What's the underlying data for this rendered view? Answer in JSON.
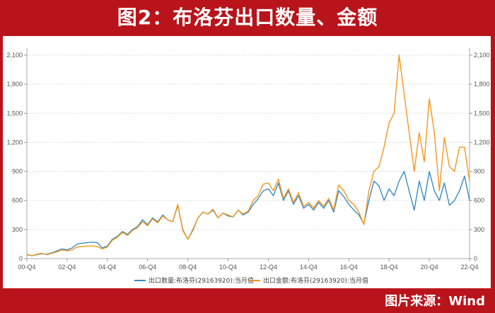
{
  "title": "图2：布洛芬出口数量、金额",
  "source": "图片来源：Wind",
  "colors": {
    "qty": "#3a8dbf",
    "amount": "#f5961e",
    "banner": "#b9141b"
  },
  "chart_data": {
    "type": "line",
    "title": "图2：布洛芬出口数量、金额",
    "x_tick_labels": [
      "00-Q4",
      "02-Q4",
      "04-Q4",
      "06-Q4",
      "08-Q4",
      "10-Q4",
      "12-Q4",
      "14-Q4",
      "16-Q4",
      "18-Q4",
      "20-Q4",
      "22-Q4"
    ],
    "y_tick_labels": [
      "0",
      "300",
      "600",
      "900",
      "1,200",
      "1,500",
      "1,800",
      "2,100"
    ],
    "ylim": [
      0,
      2100
    ],
    "y2lim": [
      0,
      2100
    ],
    "x_start": "2000-Q4",
    "x_end": "2022-Q4",
    "frequency": "quarterly (approx.)",
    "grid": true,
    "legend_position": "bottom",
    "series": [
      {
        "name": "出口数量:布洛芬(29163920):当月值",
        "color": "#3a8dbf",
        "axis": "left",
        "values": [
          40,
          30,
          40,
          50,
          45,
          60,
          80,
          100,
          90,
          110,
          150,
          160,
          165,
          170,
          165,
          110,
          130,
          200,
          230,
          280,
          250,
          300,
          330,
          400,
          350,
          420,
          380,
          450,
          400,
          380,
          550,
          300,
          200,
          300,
          420,
          480,
          460,
          500,
          420,
          470,
          440,
          430,
          500,
          450,
          480,
          560,
          620,
          700,
          720,
          650,
          780,
          600,
          700,
          560,
          650,
          520,
          560,
          500,
          580,
          520,
          600,
          480,
          700,
          640,
          560,
          500,
          450,
          360,
          600,
          800,
          750,
          600,
          720,
          650,
          800,
          900,
          700,
          500,
          800,
          600,
          900,
          700,
          600,
          780,
          550,
          600,
          700,
          850,
          600
        ]
      },
      {
        "name": "出口金额:布洛芬(29163920):当月值",
        "color": "#f5961e",
        "axis": "right",
        "values": [
          45,
          30,
          45,
          55,
          40,
          55,
          70,
          90,
          80,
          90,
          120,
          125,
          130,
          130,
          125,
          100,
          120,
          190,
          220,
          270,
          240,
          290,
          320,
          380,
          340,
          410,
          370,
          440,
          400,
          380,
          560,
          290,
          200,
          290,
          420,
          480,
          460,
          510,
          420,
          470,
          450,
          430,
          500,
          460,
          490,
          600,
          650,
          770,
          780,
          700,
          820,
          620,
          720,
          580,
          680,
          540,
          580,
          520,
          600,
          540,
          620,
          500,
          760,
          700,
          600,
          560,
          480,
          350,
          700,
          900,
          950,
          1150,
          1400,
          1500,
          2100,
          1700,
          1300,
          900,
          1300,
          1000,
          1650,
          1300,
          700,
          1250,
          950,
          900,
          1150,
          1150,
          800
        ]
      }
    ]
  }
}
